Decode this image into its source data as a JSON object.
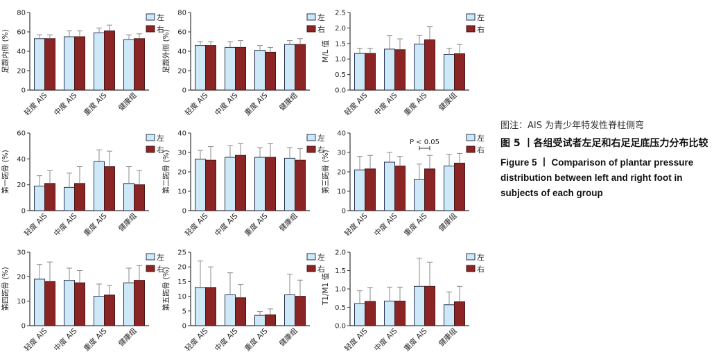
{
  "caption": {
    "note": "图注：AIS 为青少年特发性脊柱侧弯",
    "title_cn": "图 5 丨各组受试者左足和右足足底压力分布比较",
    "title_en": "Figure 5  丨  Comparison of plantar pressure distribution between left and right foot in subjects of each group"
  },
  "colors": {
    "left": "#cde9f8",
    "right": "#8b2525",
    "axis": "#333333",
    "error": "#888888"
  },
  "legend": {
    "left_label": "左",
    "right_label": "右"
  },
  "chart_data": [
    {
      "type": "bar",
      "ylabel": "足跟内侧 (%)",
      "ylim": [
        0,
        80
      ],
      "yticks": [
        0,
        20,
        40,
        60,
        80
      ],
      "categories": [
        "轻度 AIS",
        "中度 AIS",
        "重度 AIS",
        "健康组"
      ],
      "series": [
        {
          "name": "左",
          "values": [
            53,
            55,
            59,
            52
          ],
          "errors": [
            4,
            6,
            5,
            5
          ]
        },
        {
          "name": "右",
          "values": [
            53,
            55,
            61,
            53
          ],
          "errors": [
            4,
            6,
            6,
            5
          ]
        }
      ],
      "annotations": []
    },
    {
      "type": "bar",
      "ylabel": "足跟外侧 (%)",
      "ylim": [
        0,
        80
      ],
      "yticks": [
        0,
        20,
        40,
        60,
        80
      ],
      "categories": [
        "轻度 AIS",
        "中度 AIS",
        "重度 AIS",
        "健康组"
      ],
      "series": [
        {
          "name": "左",
          "values": [
            46,
            44,
            41,
            47
          ],
          "errors": [
            4,
            6,
            5,
            4
          ]
        },
        {
          "name": "右",
          "values": [
            46,
            44,
            39,
            47
          ],
          "errors": [
            4,
            7,
            5,
            6
          ]
        }
      ],
      "annotations": []
    },
    {
      "type": "bar",
      "ylabel": "M/L 值",
      "ylim": [
        0,
        2.5
      ],
      "yticks": [
        0,
        0.5,
        1.0,
        1.5,
        2.0,
        2.5
      ],
      "categories": [
        "轻度 AIS",
        "中度 AIS",
        "重度 AIS",
        "健康组"
      ],
      "series": [
        {
          "name": "左",
          "values": [
            1.18,
            1.32,
            1.48,
            1.15
          ],
          "errors": [
            0.17,
            0.43,
            0.28,
            0.2
          ]
        },
        {
          "name": "右",
          "values": [
            1.18,
            1.3,
            1.62,
            1.17
          ],
          "errors": [
            0.17,
            0.35,
            0.42,
            0.3
          ]
        }
      ],
      "annotations": []
    },
    {
      "type": "bar",
      "ylabel": "第一跖骨 (%)",
      "ylim": [
        0,
        60
      ],
      "yticks": [
        0,
        20,
        40,
        60
      ],
      "categories": [
        "轻度 AIS",
        "中度 AIS",
        "重度 AIS",
        "健康组"
      ],
      "series": [
        {
          "name": "左",
          "values": [
            19,
            18,
            38,
            21
          ],
          "errors": [
            8,
            11,
            9,
            13
          ]
        },
        {
          "name": "右",
          "values": [
            21,
            21,
            34,
            20
          ],
          "errors": [
            10,
            13,
            12,
            11
          ]
        }
      ],
      "annotations": []
    },
    {
      "type": "bar",
      "ylabel": "第二跖骨 (%)",
      "ylim": [
        0,
        40
      ],
      "yticks": [
        0,
        10,
        20,
        30,
        40
      ],
      "categories": [
        "轻度 AIS",
        "中度 AIS",
        "重度 AIS",
        "健康组"
      ],
      "series": [
        {
          "name": "左",
          "values": [
            26.5,
            27.5,
            27.5,
            27
          ],
          "errors": [
            4.5,
            6,
            5,
            5.5
          ]
        },
        {
          "name": "右",
          "values": [
            26,
            28.5,
            27.5,
            26
          ],
          "errors": [
            7,
            6,
            7,
            6
          ]
        }
      ],
      "annotations": []
    },
    {
      "type": "bar",
      "ylabel": "第三跖骨 (%)",
      "ylim": [
        0,
        40
      ],
      "yticks": [
        0,
        10,
        20,
        30,
        40
      ],
      "categories": [
        "轻度 AIS",
        "中度 AIS",
        "重度 AIS",
        "健康组"
      ],
      "series": [
        {
          "name": "左",
          "values": [
            21,
            25,
            16,
            23
          ],
          "errors": [
            7,
            5,
            8,
            6
          ]
        },
        {
          "name": "右",
          "values": [
            21.5,
            23,
            21.5,
            24.5
          ],
          "errors": [
            7,
            5,
            7,
            5
          ]
        }
      ],
      "annotations": [
        {
          "text": "P < 0.05",
          "group": 2
        }
      ]
    },
    {
      "type": "bar",
      "ylabel": "第四跖骨 (%)",
      "ylim": [
        0,
        30
      ],
      "yticks": [
        0,
        10,
        20,
        30
      ],
      "categories": [
        "轻度 AIS",
        "中度 AIS",
        "重度 AIS",
        "健康组"
      ],
      "series": [
        {
          "name": "左",
          "values": [
            19,
            18.5,
            12,
            17.5
          ],
          "errors": [
            6,
            5,
            5,
            6
          ]
        },
        {
          "name": "右",
          "values": [
            18,
            17.5,
            12.5,
            18.5
          ],
          "errors": [
            8,
            5,
            4,
            6
          ]
        }
      ],
      "annotations": []
    },
    {
      "type": "bar",
      "ylabel": "第五跖骨 (%)",
      "ylim": [
        0,
        25
      ],
      "yticks": [
        0,
        5,
        10,
        15,
        20,
        25
      ],
      "categories": [
        "轻度 AIS",
        "中度 AIS",
        "重度 AIS",
        "健康组"
      ],
      "series": [
        {
          "name": "左",
          "values": [
            13,
            10.5,
            3.5,
            10.5
          ],
          "errors": [
            9,
            7.5,
            1.3,
            7
          ]
        },
        {
          "name": "右",
          "values": [
            13,
            9.5,
            3.7,
            10
          ],
          "errors": [
            7,
            4.5,
            2,
            5.5
          ]
        }
      ],
      "annotations": []
    },
    {
      "type": "bar",
      "ylabel": "T1/M1 值",
      "ylim": [
        0,
        2.0
      ],
      "yticks": [
        0,
        0.5,
        1.0,
        1.5,
        2.0
      ],
      "categories": [
        "轻度 AIS",
        "中度 AIS",
        "重度 AIS",
        "健康组"
      ],
      "series": [
        {
          "name": "左",
          "values": [
            0.6,
            0.67,
            1.07,
            0.57
          ],
          "errors": [
            0.35,
            0.38,
            0.77,
            0.35
          ]
        },
        {
          "name": "右",
          "values": [
            0.66,
            0.67,
            1.07,
            0.65
          ],
          "errors": [
            0.38,
            0.38,
            0.66,
            0.42
          ]
        }
      ],
      "annotations": []
    }
  ]
}
